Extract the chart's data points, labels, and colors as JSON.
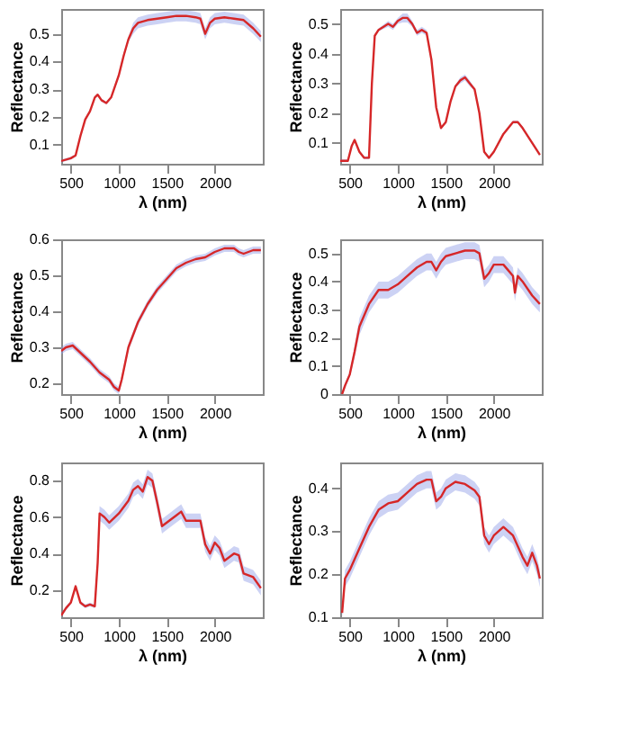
{
  "chart_data": [
    {
      "type": "line",
      "xlabel": "λ (nm)",
      "ylabel": "Reflectance",
      "xlim": [
        400,
        2500
      ],
      "xticks": [
        500,
        1000,
        1500,
        2000
      ],
      "ylim": [
        0.03,
        0.59
      ],
      "yticks": [
        0.1,
        0.2,
        0.3,
        0.4,
        0.5
      ],
      "grid": false,
      "x": [
        400,
        500,
        550,
        600,
        650,
        700,
        750,
        780,
        820,
        870,
        920,
        1000,
        1050,
        1100,
        1150,
        1200,
        1300,
        1400,
        1500,
        1600,
        1700,
        1800,
        1850,
        1900,
        1950,
        2000,
        2100,
        2200,
        2300,
        2400,
        2480
      ],
      "series": [
        {
          "color": "#d62728",
          "values": [
            0.04,
            0.05,
            0.06,
            0.13,
            0.19,
            0.22,
            0.27,
            0.28,
            0.26,
            0.25,
            0.27,
            0.35,
            0.42,
            0.48,
            0.52,
            0.54,
            0.55,
            0.555,
            0.56,
            0.565,
            0.565,
            0.56,
            0.555,
            0.5,
            0.54,
            0.555,
            0.56,
            0.555,
            0.55,
            0.52,
            0.49
          ],
          "lower": [
            0.035,
            0.045,
            0.055,
            0.125,
            0.185,
            0.215,
            0.265,
            0.275,
            0.255,
            0.245,
            0.265,
            0.34,
            0.41,
            0.47,
            0.5,
            0.52,
            0.53,
            0.535,
            0.54,
            0.545,
            0.545,
            0.54,
            0.535,
            0.48,
            0.52,
            0.535,
            0.54,
            0.535,
            0.53,
            0.5,
            0.47
          ],
          "upper": [
            0.045,
            0.055,
            0.065,
            0.135,
            0.195,
            0.225,
            0.275,
            0.285,
            0.265,
            0.255,
            0.275,
            0.36,
            0.43,
            0.49,
            0.54,
            0.56,
            0.57,
            0.575,
            0.58,
            0.585,
            0.585,
            0.58,
            0.575,
            0.52,
            0.56,
            0.575,
            0.58,
            0.575,
            0.57,
            0.54,
            0.51
          ]
        }
      ]
    },
    {
      "type": "line",
      "xlabel": "λ (nm)",
      "ylabel": "Reflectance",
      "xlim": [
        400,
        2500
      ],
      "xticks": [
        500,
        1000,
        1500,
        2000
      ],
      "ylim": [
        0.03,
        0.55
      ],
      "yticks": [
        0.1,
        0.2,
        0.3,
        0.4,
        0.5
      ],
      "grid": false,
      "x": [
        400,
        480,
        520,
        550,
        600,
        650,
        700,
        730,
        760,
        800,
        900,
        950,
        1000,
        1050,
        1100,
        1150,
        1200,
        1250,
        1300,
        1350,
        1400,
        1450,
        1500,
        1550,
        1600,
        1650,
        1700,
        1750,
        1800,
        1850,
        1900,
        1950,
        2000,
        2100,
        2200,
        2250,
        2300,
        2400,
        2480
      ],
      "series": [
        {
          "color": "#d62728",
          "values": [
            0.04,
            0.04,
            0.09,
            0.11,
            0.07,
            0.05,
            0.05,
            0.3,
            0.46,
            0.48,
            0.5,
            0.49,
            0.51,
            0.52,
            0.52,
            0.5,
            0.47,
            0.48,
            0.47,
            0.38,
            0.22,
            0.15,
            0.17,
            0.24,
            0.29,
            0.31,
            0.32,
            0.3,
            0.28,
            0.2,
            0.07,
            0.05,
            0.07,
            0.13,
            0.17,
            0.17,
            0.15,
            0.1,
            0.06
          ],
          "lower": [
            0.035,
            0.035,
            0.085,
            0.105,
            0.065,
            0.045,
            0.045,
            0.295,
            0.455,
            0.475,
            0.49,
            0.48,
            0.5,
            0.505,
            0.505,
            0.49,
            0.46,
            0.47,
            0.46,
            0.375,
            0.215,
            0.145,
            0.165,
            0.235,
            0.285,
            0.3,
            0.31,
            0.29,
            0.275,
            0.195,
            0.065,
            0.045,
            0.065,
            0.125,
            0.165,
            0.165,
            0.145,
            0.095,
            0.055
          ],
          "upper": [
            0.045,
            0.045,
            0.095,
            0.115,
            0.075,
            0.055,
            0.055,
            0.305,
            0.465,
            0.485,
            0.51,
            0.5,
            0.52,
            0.535,
            0.535,
            0.51,
            0.48,
            0.49,
            0.48,
            0.385,
            0.225,
            0.155,
            0.175,
            0.245,
            0.295,
            0.32,
            0.33,
            0.31,
            0.285,
            0.205,
            0.075,
            0.055,
            0.075,
            0.135,
            0.175,
            0.175,
            0.155,
            0.105,
            0.065
          ]
        }
      ]
    },
    {
      "type": "line",
      "xlabel": "λ (nm)",
      "ylabel": "Reflectance",
      "xlim": [
        400,
        2500
      ],
      "xticks": [
        500,
        1000,
        1500,
        2000
      ],
      "ylim": [
        0.17,
        0.6
      ],
      "yticks": [
        0.2,
        0.3,
        0.4,
        0.5,
        0.6
      ],
      "grid": false,
      "x": [
        400,
        450,
        520,
        600,
        700,
        800,
        900,
        950,
        1000,
        1030,
        1100,
        1200,
        1300,
        1400,
        1500,
        1600,
        1700,
        1800,
        1900,
        2000,
        2100,
        2200,
        2250,
        2300,
        2400,
        2480
      ],
      "series": [
        {
          "color": "#d62728",
          "values": [
            0.29,
            0.3,
            0.305,
            0.285,
            0.26,
            0.23,
            0.21,
            0.19,
            0.18,
            0.21,
            0.3,
            0.37,
            0.42,
            0.46,
            0.49,
            0.52,
            0.535,
            0.545,
            0.55,
            0.565,
            0.575,
            0.575,
            0.565,
            0.56,
            0.57,
            0.57
          ],
          "lower": [
            0.28,
            0.29,
            0.295,
            0.275,
            0.25,
            0.22,
            0.2,
            0.18,
            0.17,
            0.2,
            0.29,
            0.36,
            0.41,
            0.45,
            0.48,
            0.51,
            0.525,
            0.535,
            0.54,
            0.555,
            0.565,
            0.565,
            0.555,
            0.55,
            0.56,
            0.56
          ],
          "upper": [
            0.3,
            0.31,
            0.315,
            0.295,
            0.27,
            0.24,
            0.22,
            0.2,
            0.19,
            0.22,
            0.31,
            0.38,
            0.43,
            0.47,
            0.5,
            0.53,
            0.545,
            0.555,
            0.56,
            0.575,
            0.585,
            0.585,
            0.575,
            0.57,
            0.58,
            0.58
          ]
        }
      ]
    },
    {
      "type": "line",
      "xlabel": "λ (nm)",
      "ylabel": "Reflectance",
      "xlim": [
        400,
        2500
      ],
      "xticks": [
        500,
        1000,
        1500,
        2000
      ],
      "ylim": [
        0,
        0.55
      ],
      "yticks": [
        0,
        0.1,
        0.2,
        0.3,
        0.4,
        0.5
      ],
      "grid": false,
      "x": [
        420,
        450,
        500,
        550,
        600,
        700,
        800,
        900,
        1000,
        1100,
        1200,
        1300,
        1350,
        1400,
        1450,
        1500,
        1600,
        1700,
        1800,
        1850,
        1900,
        1950,
        2000,
        2100,
        2150,
        2200,
        2220,
        2250,
        2300,
        2400,
        2480
      ],
      "series": [
        {
          "color": "#d62728",
          "values": [
            0.0,
            0.03,
            0.07,
            0.15,
            0.24,
            0.32,
            0.37,
            0.37,
            0.39,
            0.42,
            0.45,
            0.47,
            0.47,
            0.44,
            0.47,
            0.49,
            0.5,
            0.51,
            0.51,
            0.5,
            0.41,
            0.43,
            0.46,
            0.46,
            0.44,
            0.42,
            0.36,
            0.42,
            0.4,
            0.35,
            0.32
          ],
          "lower": [
            0.0,
            0.02,
            0.06,
            0.13,
            0.21,
            0.29,
            0.34,
            0.34,
            0.36,
            0.39,
            0.42,
            0.44,
            0.44,
            0.41,
            0.44,
            0.46,
            0.47,
            0.48,
            0.48,
            0.47,
            0.38,
            0.4,
            0.43,
            0.43,
            0.41,
            0.39,
            0.33,
            0.39,
            0.37,
            0.32,
            0.29
          ],
          "upper": [
            0.01,
            0.04,
            0.08,
            0.17,
            0.27,
            0.35,
            0.4,
            0.4,
            0.42,
            0.45,
            0.48,
            0.5,
            0.5,
            0.47,
            0.5,
            0.52,
            0.53,
            0.54,
            0.54,
            0.53,
            0.44,
            0.46,
            0.49,
            0.49,
            0.47,
            0.45,
            0.39,
            0.45,
            0.43,
            0.38,
            0.35
          ]
        }
      ]
    },
    {
      "type": "line",
      "xlabel": "λ (nm)",
      "ylabel": "Reflectance",
      "xlim": [
        400,
        2500
      ],
      "xticks": [
        500,
        1000,
        1500,
        2000
      ],
      "ylim": [
        0.05,
        0.9
      ],
      "yticks": [
        0.2,
        0.4,
        0.6,
        0.8
      ],
      "grid": false,
      "x": [
        400,
        450,
        500,
        550,
        600,
        650,
        700,
        750,
        780,
        800,
        850,
        900,
        1000,
        1100,
        1150,
        1200,
        1250,
        1300,
        1350,
        1400,
        1450,
        1500,
        1600,
        1650,
        1700,
        1800,
        1850,
        1900,
        1950,
        2000,
        2050,
        2100,
        2200,
        2250,
        2300,
        2400,
        2480
      ],
      "series": [
        {
          "color": "#d62728",
          "values": [
            0.06,
            0.1,
            0.13,
            0.22,
            0.13,
            0.11,
            0.12,
            0.11,
            0.35,
            0.62,
            0.6,
            0.57,
            0.62,
            0.69,
            0.75,
            0.77,
            0.74,
            0.82,
            0.8,
            0.68,
            0.55,
            0.57,
            0.61,
            0.63,
            0.58,
            0.58,
            0.58,
            0.45,
            0.4,
            0.46,
            0.43,
            0.36,
            0.4,
            0.39,
            0.29,
            0.27,
            0.21
          ],
          "lower": [
            0.05,
            0.09,
            0.12,
            0.21,
            0.12,
            0.1,
            0.11,
            0.1,
            0.33,
            0.58,
            0.56,
            0.53,
            0.58,
            0.65,
            0.71,
            0.73,
            0.7,
            0.78,
            0.76,
            0.64,
            0.51,
            0.53,
            0.57,
            0.59,
            0.54,
            0.54,
            0.54,
            0.41,
            0.36,
            0.42,
            0.39,
            0.32,
            0.36,
            0.35,
            0.25,
            0.23,
            0.17
          ],
          "upper": [
            0.07,
            0.11,
            0.14,
            0.23,
            0.14,
            0.12,
            0.13,
            0.12,
            0.37,
            0.66,
            0.64,
            0.61,
            0.66,
            0.73,
            0.79,
            0.81,
            0.78,
            0.86,
            0.84,
            0.72,
            0.59,
            0.61,
            0.65,
            0.67,
            0.62,
            0.62,
            0.62,
            0.49,
            0.44,
            0.5,
            0.47,
            0.4,
            0.44,
            0.43,
            0.33,
            0.31,
            0.25
          ]
        }
      ]
    },
    {
      "type": "line",
      "xlabel": "λ (nm)",
      "ylabel": "Reflectance",
      "xlim": [
        400,
        2500
      ],
      "xticks": [
        500,
        1000,
        1500,
        2000
      ],
      "ylim": [
        0.1,
        0.46
      ],
      "yticks": [
        0.1,
        0.2,
        0.3,
        0.4
      ],
      "grid": false,
      "x": [
        420,
        450,
        500,
        600,
        700,
        800,
        900,
        1000,
        1100,
        1200,
        1300,
        1350,
        1400,
        1450,
        1500,
        1600,
        1700,
        1800,
        1850,
        1900,
        1950,
        2000,
        2100,
        2200,
        2300,
        2350,
        2400,
        2450,
        2480
      ],
      "series": [
        {
          "color": "#d62728",
          "values": [
            0.11,
            0.19,
            0.21,
            0.26,
            0.31,
            0.35,
            0.365,
            0.37,
            0.39,
            0.41,
            0.42,
            0.42,
            0.37,
            0.38,
            0.4,
            0.415,
            0.41,
            0.395,
            0.38,
            0.29,
            0.27,
            0.29,
            0.31,
            0.29,
            0.24,
            0.22,
            0.25,
            0.22,
            0.19
          ],
          "lower": [
            0.1,
            0.17,
            0.19,
            0.24,
            0.29,
            0.33,
            0.345,
            0.35,
            0.37,
            0.39,
            0.4,
            0.4,
            0.35,
            0.36,
            0.38,
            0.395,
            0.39,
            0.375,
            0.36,
            0.27,
            0.25,
            0.27,
            0.29,
            0.27,
            0.22,
            0.2,
            0.23,
            0.2,
            0.17
          ],
          "upper": [
            0.12,
            0.21,
            0.23,
            0.28,
            0.33,
            0.37,
            0.385,
            0.39,
            0.41,
            0.43,
            0.44,
            0.44,
            0.39,
            0.4,
            0.42,
            0.435,
            0.43,
            0.415,
            0.4,
            0.31,
            0.29,
            0.31,
            0.33,
            0.31,
            0.26,
            0.24,
            0.27,
            0.24,
            0.21
          ]
        }
      ]
    }
  ]
}
